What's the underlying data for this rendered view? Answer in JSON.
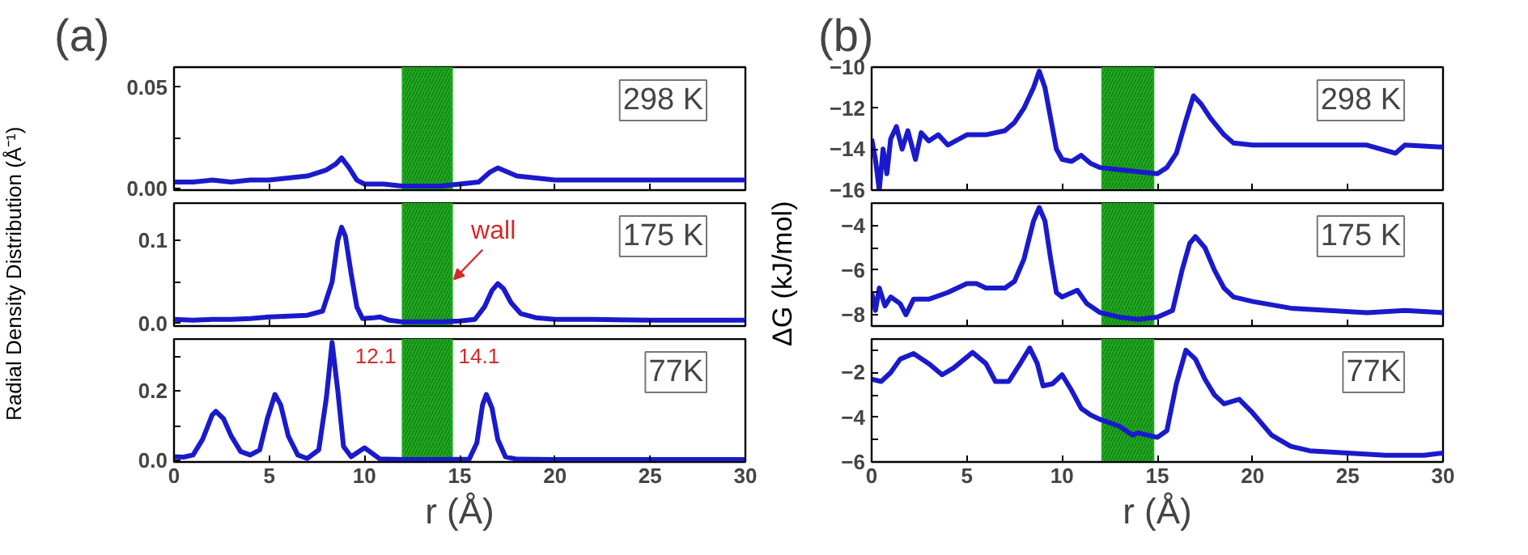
{
  "chart_data": [
    {
      "type": "line",
      "title": "(a)",
      "color": "#1a1acc",
      "xlim": [
        0,
        30
      ],
      "ylim": [
        -0.001,
        0.06
      ],
      "xticks": [
        0,
        5,
        10,
        15,
        20,
        25,
        30
      ],
      "yticks": [
        {
          "value": 0,
          "label": "0.00"
        },
        {
          "value": 0.025,
          "label": null
        },
        {
          "value": 0.05,
          "label": "0.05"
        }
      ],
      "tick_labels": "y",
      "bands": [
        {
          "axis": "x",
          "from": 12.0,
          "to": 14.6,
          "color": "#1faa1f"
        }
      ],
      "annotations": [
        "298 K"
      ],
      "x": [
        0,
        1,
        2,
        3,
        4,
        5,
        6,
        7,
        8,
        8.5,
        8.8,
        9.2,
        9.6,
        10,
        11,
        12,
        13,
        14,
        15,
        16,
        16.6,
        17.0,
        17.5,
        18,
        19,
        20,
        22,
        24,
        26,
        28,
        30
      ],
      "values": [
        0.003,
        0.003,
        0.004,
        0.003,
        0.004,
        0.004,
        0.005,
        0.006,
        0.009,
        0.012,
        0.015,
        0.01,
        0.004,
        0.002,
        0.002,
        0.001,
        0.001,
        0.001,
        0.002,
        0.003,
        0.008,
        0.01,
        0.008,
        0.006,
        0.005,
        0.004,
        0.004,
        0.004,
        0.004,
        0.004,
        0.004
      ]
    },
    {
      "type": "line",
      "ylabel": "Radial Density Distribution (Å⁻¹)",
      "color": "#1a1acc",
      "xlim": [
        0,
        30
      ],
      "ylim": [
        -0.003,
        0.145
      ],
      "xticks": [
        0,
        5,
        10,
        15,
        20,
        25,
        30
      ],
      "yticks": [
        {
          "value": 0,
          "label": "0.0"
        },
        {
          "value": 0.05,
          "label": null
        },
        {
          "value": 0.1,
          "label": "0.1"
        }
      ],
      "tick_labels": "y",
      "bands": [
        {
          "axis": "x",
          "from": 12.0,
          "to": 14.6,
          "color": "#1faa1f",
          "label": "wall"
        }
      ],
      "annotations": [
        "175 K"
      ],
      "x": [
        0,
        1,
        2,
        3,
        4,
        5,
        6,
        7,
        7.8,
        8.3,
        8.6,
        8.8,
        9.0,
        9.3,
        9.6,
        9.9,
        10.5,
        10.8,
        11.3,
        12,
        13,
        14,
        15,
        15.8,
        16.3,
        16.7,
        17.0,
        17.3,
        17.7,
        18.2,
        19,
        20,
        22,
        25,
        28,
        30
      ],
      "values": [
        0.005,
        0.004,
        0.005,
        0.005,
        0.006,
        0.008,
        0.009,
        0.01,
        0.015,
        0.05,
        0.1,
        0.116,
        0.105,
        0.06,
        0.02,
        0.006,
        0.007,
        0.008,
        0.004,
        0.002,
        0.002,
        0.002,
        0.003,
        0.005,
        0.02,
        0.04,
        0.048,
        0.042,
        0.025,
        0.012,
        0.007,
        0.005,
        0.005,
        0.004,
        0.004,
        0.004
      ]
    },
    {
      "type": "line",
      "xlabel": "r (Å)",
      "color": "#1a1acc",
      "xlim": [
        0,
        30
      ],
      "ylim": [
        -0.005,
        0.35
      ],
      "xticks": [
        0,
        5,
        10,
        15,
        20,
        25,
        30
      ],
      "yticks": [
        {
          "value": 0,
          "label": "0.0"
        },
        {
          "value": 0.1,
          "label": null
        },
        {
          "value": 0.2,
          "label": "0.2"
        },
        {
          "value": 0.3,
          "label": null
        }
      ],
      "bands": [
        {
          "axis": "x",
          "from": 12.0,
          "to": 14.6,
          "color": "#1faa1f"
        }
      ],
      "annotations": [
        "77K",
        "12.1",
        "14.1"
      ],
      "x": [
        0,
        0.5,
        1,
        1.5,
        2.0,
        2.2,
        2.6,
        3.0,
        3.5,
        4.0,
        4.5,
        4.9,
        5.3,
        5.6,
        6.0,
        6.5,
        7.0,
        7.6,
        8.0,
        8.3,
        8.6,
        8.9,
        9.3,
        9.7,
        10.0,
        10.4,
        10.8,
        12,
        14,
        15.5,
        15.9,
        16.2,
        16.4,
        16.7,
        17.0,
        17.4,
        18,
        20,
        25,
        30
      ],
      "values": [
        0.01,
        0.009,
        0.015,
        0.06,
        0.13,
        0.141,
        0.12,
        0.07,
        0.025,
        0.015,
        0.03,
        0.12,
        0.19,
        0.16,
        0.07,
        0.015,
        0.005,
        0.03,
        0.18,
        0.34,
        0.2,
        0.04,
        0.01,
        0.025,
        0.036,
        0.02,
        0.004,
        0.002,
        0.002,
        0.003,
        0.05,
        0.16,
        0.19,
        0.15,
        0.06,
        0.01,
        0.003,
        0.002,
        0.002,
        0.002
      ]
    },
    {
      "type": "line",
      "title": "(b)",
      "color": "#1a1acc",
      "xlim": [
        0,
        30
      ],
      "ylim": [
        -16,
        -10
      ],
      "xticks": [
        0,
        5,
        10,
        15,
        20,
        25,
        30
      ],
      "yticks": [
        -16,
        -14,
        -12,
        -10
      ],
      "tick_labels": "y",
      "bands": [
        {
          "axis": "x",
          "from": 12.1,
          "to": 14.8,
          "color": "#1faa1f"
        }
      ],
      "annotations": [
        "298 K"
      ],
      "x": [
        0,
        0.2,
        0.4,
        0.6,
        0.8,
        1,
        1.3,
        1.6,
        1.9,
        2.3,
        2.6,
        3,
        3.5,
        4,
        5,
        6,
        7,
        7.5,
        8,
        8.5,
        8.8,
        9.1,
        9.4,
        9.7,
        10,
        10.5,
        11,
        11.5,
        12,
        13,
        14,
        15,
        15.5,
        16,
        16.5,
        16.9,
        17.3,
        17.8,
        18.5,
        19,
        20,
        22,
        24,
        26,
        27.5,
        28,
        30
      ],
      "values": [
        -13.5,
        -14.5,
        -16,
        -14,
        -15.2,
        -13.5,
        -12.9,
        -14,
        -13.1,
        -14.5,
        -13.2,
        -13.6,
        -13.3,
        -13.8,
        -13.3,
        -13.3,
        -13.1,
        -12.7,
        -12.0,
        -11.0,
        -10.2,
        -11.0,
        -12.5,
        -14.0,
        -14.5,
        -14.6,
        -14.3,
        -14.7,
        -14.9,
        -15.0,
        -15.1,
        -15.2,
        -14.9,
        -14.2,
        -12.6,
        -11.4,
        -11.8,
        -12.5,
        -13.3,
        -13.7,
        -13.8,
        -13.8,
        -13.8,
        -13.8,
        -14.2,
        -13.8,
        -13.9
      ]
    },
    {
      "type": "line",
      "ylabel": "ΔG (kJ/mol)",
      "color": "#1a1acc",
      "xlim": [
        0,
        30
      ],
      "ylim": [
        -8.5,
        -3
      ],
      "xticks": [
        0,
        5,
        10,
        15,
        20,
        25,
        30
      ],
      "yticks": [
        -8,
        {
          "value": -7,
          "label": null
        },
        -6,
        {
          "value": -5,
          "label": null
        },
        -4
      ],
      "tick_labels": "y",
      "bands": [
        {
          "axis": "x",
          "from": 12.1,
          "to": 14.8,
          "color": "#1faa1f"
        }
      ],
      "annotations": [
        "175 K"
      ],
      "x": [
        0,
        0.2,
        0.4,
        0.7,
        1,
        1.5,
        1.8,
        2.2,
        3,
        4,
        5,
        5.5,
        6,
        7,
        7.5,
        8,
        8.5,
        8.8,
        9.1,
        9.4,
        9.7,
        10,
        10.8,
        11.3,
        12,
        13,
        14,
        15,
        15.8,
        16.3,
        16.7,
        17.0,
        17.5,
        18,
        18.5,
        19,
        20,
        22,
        24,
        26,
        28,
        30
      ],
      "values": [
        -7.0,
        -7.8,
        -6.8,
        -7.6,
        -7.2,
        -7.5,
        -8.0,
        -7.3,
        -7.3,
        -7.0,
        -6.6,
        -6.6,
        -6.8,
        -6.8,
        -6.5,
        -5.5,
        -3.8,
        -3.2,
        -3.8,
        -5.5,
        -7.0,
        -7.2,
        -6.9,
        -7.5,
        -7.9,
        -8.1,
        -8.2,
        -8.1,
        -7.8,
        -6.0,
        -4.8,
        -4.5,
        -5.0,
        -6.0,
        -6.8,
        -7.2,
        -7.4,
        -7.7,
        -7.8,
        -7.9,
        -7.8,
        -7.9
      ]
    },
    {
      "type": "line",
      "xlabel": "r (Å)",
      "color": "#1a1acc",
      "xlim": [
        0,
        30
      ],
      "ylim": [
        -6,
        -0.5
      ],
      "xticks": [
        0,
        5,
        10,
        15,
        20,
        25,
        30
      ],
      "yticks": [
        -6,
        {
          "value": -5,
          "label": null
        },
        -4,
        {
          "value": -3,
          "label": null
        },
        -2,
        {
          "value": -1,
          "label": null
        }
      ],
      "bands": [
        {
          "axis": "x",
          "from": 12.1,
          "to": 14.8,
          "color": "#1faa1f"
        }
      ],
      "annotations": [
        "77K"
      ],
      "x": [
        0,
        0.5,
        1,
        1.5,
        2.2,
        3,
        3.7,
        4.3,
        5.3,
        6,
        6.5,
        7.2,
        7.8,
        8.3,
        8.7,
        9.0,
        9.5,
        10.0,
        10.5,
        11,
        11.5,
        12,
        13,
        13.7,
        14,
        15,
        15.5,
        16,
        16.5,
        17,
        17.5,
        18,
        18.5,
        19.3,
        20,
        21,
        22,
        23,
        25,
        27,
        29,
        30
      ],
      "values": [
        -2.3,
        -2.4,
        -2.0,
        -1.4,
        -1.15,
        -1.6,
        -2.1,
        -1.8,
        -1.1,
        -1.6,
        -2.4,
        -2.4,
        -1.6,
        -0.9,
        -1.6,
        -2.6,
        -2.5,
        -2.1,
        -2.8,
        -3.6,
        -3.9,
        -4.1,
        -4.4,
        -4.8,
        -4.7,
        -4.9,
        -4.6,
        -2.5,
        -1.0,
        -1.4,
        -2.3,
        -3.0,
        -3.4,
        -3.2,
        -3.8,
        -4.8,
        -5.3,
        -5.5,
        -5.6,
        -5.7,
        -5.7,
        -5.6
      ]
    }
  ]
}
